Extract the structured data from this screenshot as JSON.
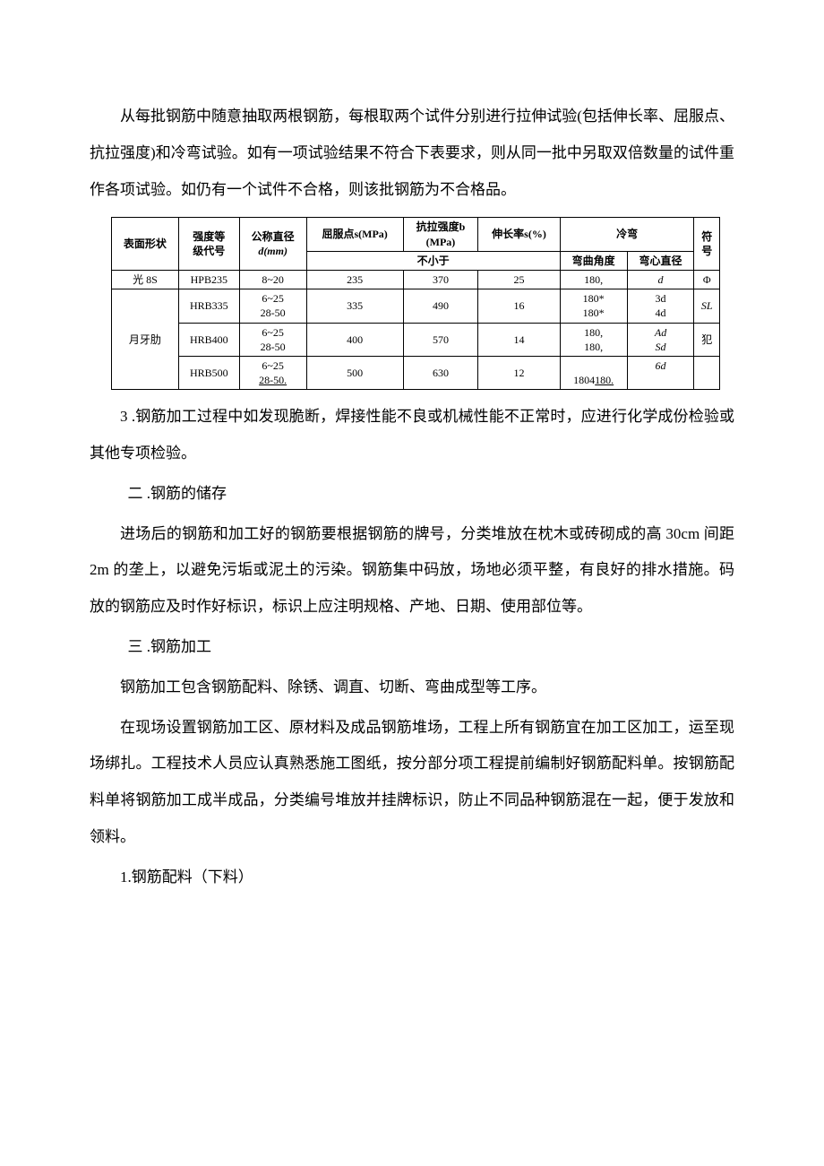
{
  "paragraphs": {
    "p1": "从每批钢筋中随意抽取两根钢筋，每根取两个试件分别进行拉伸试验(包括伸长率、屈服点、抗拉强度)和冷弯试验。如有一项试验结果不符合下表要求，则从同一批中另取双倍数量的试件重作各项试验。如仍有一个试件不合格，则该批钢筋为不合格品。",
    "p2": "3 .钢筋加工过程中如发现脆断，焊接性能不良或机械性能不正常时，应进行化学成份检验或其他专项检验。",
    "h2": "二 .钢筋的储存",
    "p3": "进场后的钢筋和加工好的钢筋要根据钢筋的牌号，分类堆放在枕木或砖砌成的高 30cm 间距 2m 的垄上，以避免污垢或泥土的污染。钢筋集中码放，场地必须平整，有良好的排水措施。码放的钢筋应及时作好标识，标识上应注明规格、产地、日期、使用部位等。",
    "h3": "三 .钢筋加工",
    "p4": "钢筋加工包含钢筋配料、除锈、调直、切断、弯曲成型等工序。",
    "p5": "在现场设置钢筋加工区、原材料及成品钢筋堆场，工程上所有钢筋宜在加工区加工，运至现场绑扎。工程技术人员应认真熟悉施工图纸，按分部分项工程提前编制好钢筋配料单。按钢筋配料单将钢筋加工成半成品，分类编号堆放并挂牌标识，防止不同品种钢筋混在一起，便于发放和领料。",
    "p6": "1.钢筋配料（下料）"
  },
  "table": {
    "head": {
      "surface": "表面形状",
      "grade": "强度等\n级代号",
      "diameter_label": "公称直径",
      "diameter_unit": "d(mm)",
      "yield": "屈服点s(MPa)",
      "tensile": "抗拉强度b\n(MPa)",
      "elong": "伸长率s(%)",
      "coldbend": "冷弯",
      "symbol": "符\n号",
      "notless": "不小于",
      "bendangle": "弯曲角度",
      "benddia": "弯心直径"
    },
    "rows": [
      {
        "surface": "光 8S",
        "grade": "HPB235",
        "dia": "8~20",
        "yield": "235",
        "tensile": "370",
        "elong": "25",
        "angle": "180,",
        "benddia": "d",
        "symbol": "Φ"
      },
      {
        "surface": "月牙肋",
        "grade": "HRB335",
        "dia": "6~25\n28-50",
        "yield": "335",
        "tensile": "490",
        "elong": "16",
        "angle": "180*\n180*",
        "benddia": "3d\n4d",
        "symbol": "SL"
      },
      {
        "grade": "HRB400",
        "dia": "6~25\n28-50",
        "yield": "400",
        "tensile": "570",
        "elong": "14",
        "angle": "180,\n180,",
        "benddia": "Ad\nSd",
        "symbol": "犯"
      },
      {
        "grade": "HRB500",
        "dia_a": "6~25",
        "dia_b": "28-50.",
        "yield": "500",
        "tensile": "630",
        "elong": "12",
        "angle_a": "1804",
        "angle_b": "180.",
        "benddia": "6d",
        "symbol": ""
      }
    ]
  }
}
